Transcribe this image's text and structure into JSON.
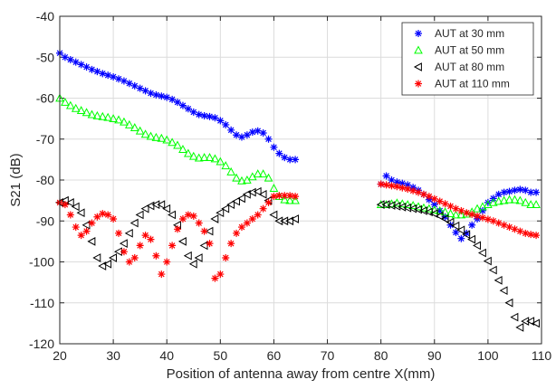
{
  "chart_data": {
    "type": "scatter",
    "title": "",
    "xlabel": "Position of antenna away from centre X(mm)",
    "ylabel": "S21 (dB)",
    "xlim": [
      20,
      110
    ],
    "ylim": [
      -120,
      -40
    ],
    "xticks": [
      "20",
      "30",
      "40",
      "50",
      "60",
      "70",
      "80",
      "90",
      "100",
      "110"
    ],
    "yticks": [
      "-120",
      "-110",
      "-100",
      "-90",
      "-80",
      "-70",
      "-60",
      "-50",
      "-40"
    ],
    "grid": true,
    "legend_position": "top-right",
    "series": [
      {
        "name": "AUT at 30 mm",
        "marker": "asterisk",
        "color": "#0000ff",
        "x": [
          20,
          21,
          22,
          23,
          24,
          25,
          26,
          27,
          28,
          29,
          30,
          31,
          32,
          33,
          34,
          35,
          36,
          37,
          38,
          39,
          40,
          41,
          42,
          43,
          44,
          45,
          46,
          47,
          48,
          49,
          50,
          51,
          52,
          53,
          54,
          55,
          56,
          57,
          58,
          59,
          60,
          61,
          62,
          63,
          64,
          80,
          81,
          82,
          83,
          84,
          85,
          86,
          87,
          88,
          89,
          90,
          91,
          92,
          93,
          94,
          95,
          96,
          97,
          98,
          99,
          100,
          101,
          102,
          103,
          104,
          105,
          106,
          107,
          108,
          109
        ],
        "y": [
          -49,
          -50,
          -50.6,
          -51.2,
          -51.8,
          -52.4,
          -53,
          -53.5,
          -54,
          -54.4,
          -54.8,
          -55.3,
          -55.8,
          -56.4,
          -57,
          -57.6,
          -58.2,
          -58.8,
          -59.2,
          -59.5,
          -59.8,
          -60.3,
          -61,
          -61.8,
          -62.6,
          -63.4,
          -64,
          -64.3,
          -64.5,
          -64.8,
          -65.5,
          -66.5,
          -67.8,
          -69,
          -69.5,
          -69,
          -68.3,
          -68,
          -68.5,
          -70,
          -72,
          -73.5,
          -74.5,
          -75,
          -75,
          -81,
          -79,
          -80,
          -80.5,
          -80.8,
          -81.2,
          -81.8,
          -82.5,
          -83.5,
          -84.8,
          -86,
          -87.5,
          -89,
          -91,
          -92.8,
          -94.3,
          -93,
          -91,
          -89.5,
          -87.5,
          -85.5,
          -84.5,
          -83.5,
          -83,
          -82.8,
          -82.5,
          -82.3,
          -82.5,
          -83,
          -83
        ]
      },
      {
        "name": "AUT at 50 mm",
        "marker": "triangle-up",
        "color": "#00ff00",
        "x": [
          20,
          21,
          22,
          23,
          24,
          25,
          26,
          27,
          28,
          29,
          30,
          31,
          32,
          33,
          34,
          35,
          36,
          37,
          38,
          39,
          40,
          41,
          42,
          43,
          44,
          45,
          46,
          47,
          48,
          49,
          50,
          51,
          52,
          53,
          54,
          55,
          56,
          57,
          58,
          59,
          60,
          61,
          62,
          63,
          64,
          80,
          81,
          82,
          83,
          84,
          85,
          86,
          87,
          88,
          89,
          90,
          91,
          92,
          93,
          94,
          95,
          96,
          97,
          98,
          99,
          100,
          101,
          102,
          103,
          104,
          105,
          106,
          107,
          108,
          109
        ],
        "y": [
          -60,
          -61,
          -61.8,
          -62.5,
          -63,
          -63.5,
          -64,
          -64.3,
          -64.5,
          -64.7,
          -65,
          -65.3,
          -65.8,
          -66.5,
          -67.2,
          -68,
          -68.8,
          -69.3,
          -69.6,
          -69.8,
          -70.2,
          -70.8,
          -71.5,
          -72.5,
          -73.5,
          -74.2,
          -74.6,
          -74.5,
          -74.5,
          -74.8,
          -75.5,
          -76.5,
          -78,
          -79.5,
          -80.2,
          -80,
          -79.2,
          -78.5,
          -78.5,
          -79.5,
          -82,
          -84,
          -84.8,
          -85,
          -85,
          -86,
          -86,
          -85.8,
          -85.6,
          -85.8,
          -86,
          -86.2,
          -86.5,
          -86.8,
          -87,
          -87.3,
          -87.5,
          -87.8,
          -88.2,
          -88.5,
          -88.5,
          -88.3,
          -87.8,
          -87,
          -86.5,
          -86,
          -85.5,
          -85.2,
          -85,
          -84.8,
          -84.8,
          -85,
          -85.5,
          -86,
          -86
        ]
      },
      {
        "name": "AUT at 80 mm",
        "marker": "triangle-left",
        "color": "#000000",
        "x": [
          20,
          21,
          22,
          23,
          24,
          25,
          26,
          27,
          28,
          29,
          30,
          31,
          32,
          33,
          34,
          35,
          36,
          37,
          38,
          39,
          40,
          41,
          42,
          43,
          44,
          45,
          46,
          47,
          48,
          49,
          50,
          51,
          52,
          53,
          54,
          55,
          56,
          57,
          58,
          59,
          60,
          61,
          62,
          63,
          64,
          80,
          81,
          82,
          83,
          84,
          85,
          86,
          87,
          88,
          89,
          90,
          91,
          92,
          93,
          94,
          95,
          96,
          97,
          98,
          99,
          100,
          101,
          102,
          103,
          104,
          105,
          106,
          107,
          108,
          109
        ],
        "y": [
          -85.5,
          -85,
          -85.5,
          -86.5,
          -88,
          -91,
          -95,
          -99,
          -101,
          -100.5,
          -99,
          -97.5,
          -95.5,
          -93,
          -90.5,
          -88.5,
          -87,
          -86.3,
          -86,
          -86,
          -87,
          -88.5,
          -91,
          -95,
          -98.5,
          -100.5,
          -99,
          -96,
          -92.5,
          -89.5,
          -88,
          -87,
          -86,
          -85.2,
          -84.5,
          -83.5,
          -83,
          -82.8,
          -83.5,
          -85,
          -88.5,
          -90,
          -90,
          -90,
          -89.5,
          -86,
          -86,
          -86.2,
          -86.4,
          -86.6,
          -86.8,
          -87,
          -87.2,
          -87.5,
          -87.8,
          -88.2,
          -88.8,
          -89.5,
          -90.3,
          -91.2,
          -92.2,
          -93.3,
          -94.5,
          -96,
          -97.8,
          -99.8,
          -102,
          -104.5,
          -107,
          -110,
          -113.5,
          -116,
          -114.5,
          -114.5,
          -115
        ]
      },
      {
        "name": "AUT at 110 mm",
        "marker": "asterisk",
        "color": "#ff0000",
        "x": [
          20,
          21,
          22,
          23,
          24,
          25,
          26,
          27,
          28,
          29,
          30,
          31,
          32,
          33,
          34,
          35,
          36,
          37,
          38,
          39,
          40,
          41,
          42,
          43,
          44,
          45,
          46,
          47,
          48,
          49,
          50,
          51,
          52,
          53,
          54,
          55,
          56,
          57,
          58,
          59,
          60,
          61,
          62,
          63,
          64,
          80,
          81,
          82,
          83,
          84,
          85,
          86,
          87,
          88,
          89,
          90,
          91,
          92,
          93,
          94,
          95,
          96,
          97,
          98,
          99,
          100,
          101,
          102,
          103,
          104,
          105,
          106,
          107,
          108,
          109
        ],
        "y": [
          -85.5,
          -86,
          -88.5,
          -91.5,
          -93.5,
          -92.5,
          -90.5,
          -89,
          -88.2,
          -88.5,
          -89.5,
          -93,
          -97.5,
          -100,
          -99,
          -96,
          -93.5,
          -94.5,
          -98.5,
          -103,
          -100,
          -96,
          -92,
          -89.5,
          -88.5,
          -88.8,
          -90.5,
          -92.5,
          -95.5,
          -104,
          -103,
          -99,
          -95.5,
          -93,
          -91.5,
          -90.5,
          -89.5,
          -88.5,
          -87,
          -85.5,
          -84,
          -83.8,
          -83.8,
          -83.8,
          -84,
          -81,
          -81.2,
          -81.4,
          -81.6,
          -81.9,
          -82.2,
          -82.6,
          -83,
          -83.5,
          -84,
          -84.6,
          -85.2,
          -85.8,
          -86.4,
          -87,
          -87.5,
          -88,
          -88.4,
          -88.8,
          -89.2,
          -89.6,
          -90,
          -90.5,
          -91,
          -91.5,
          -92,
          -92.5,
          -93,
          -93.3,
          -93.5
        ]
      }
    ]
  }
}
